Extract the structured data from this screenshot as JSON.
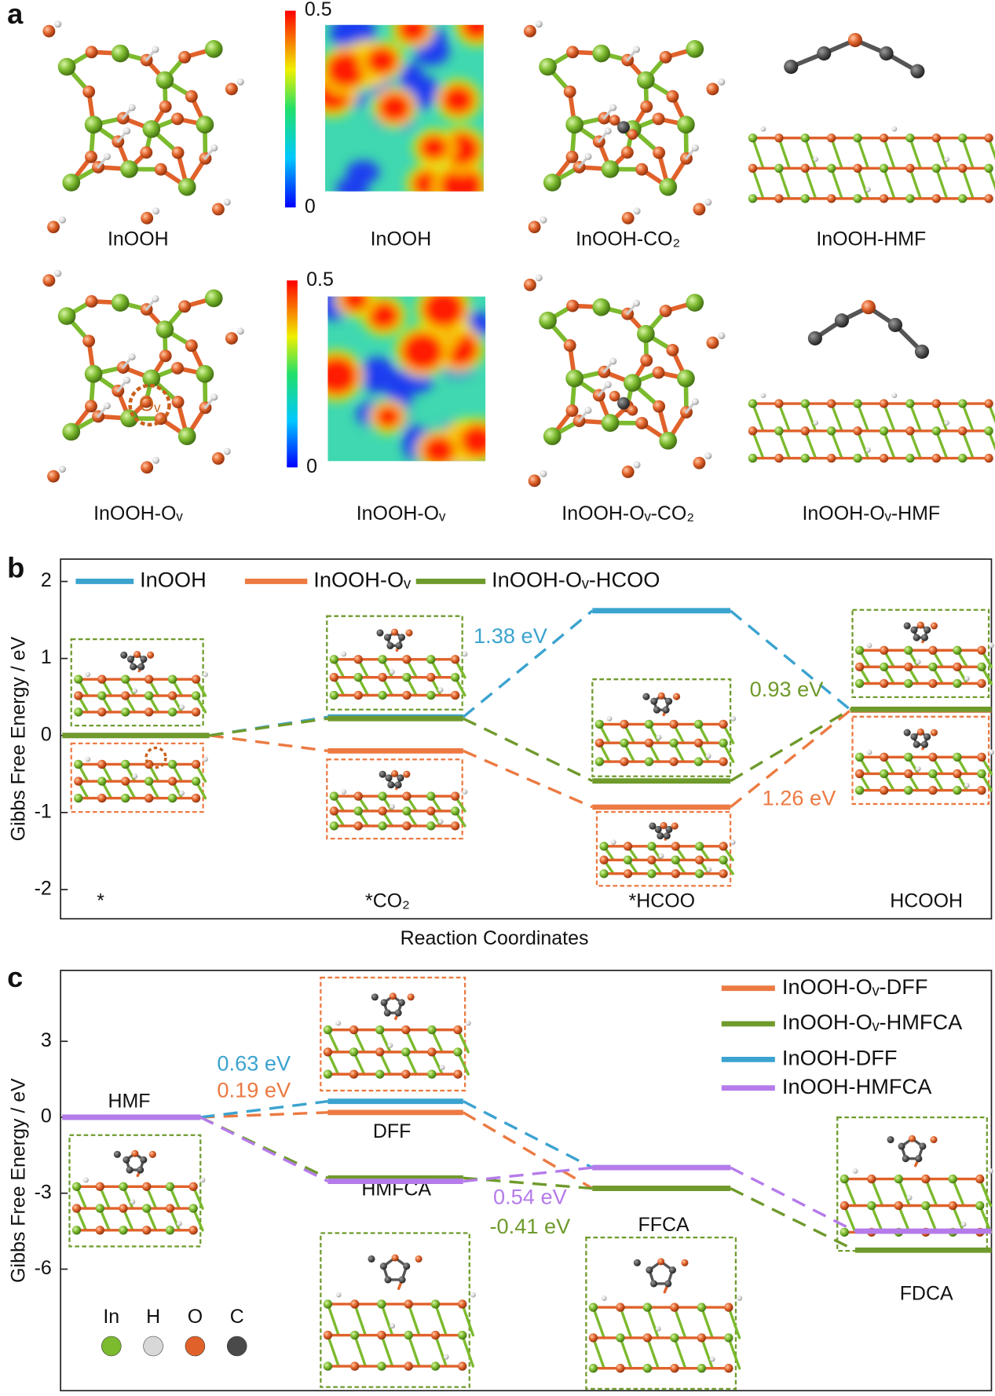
{
  "panel_a": {
    "label": "a",
    "captions": [
      "InOOH",
      "InOOH",
      "InOOH-CO₂",
      "InOOH-HMF",
      "InOOH-Oᵥ",
      "InOOH-Oᵥ",
      "InOOH-Oᵥ-CO₂",
      "InOOH-Oᵥ-HMF"
    ],
    "clim": [
      0,
      0.5
    ],
    "cticks": [
      0,
      0.5
    ],
    "vacancy_label": "Oᵥ"
  },
  "atom_legend": [
    {
      "name": "In",
      "color": "#7cba2e"
    },
    {
      "name": "H",
      "color": "#d8d8d8"
    },
    {
      "name": "O",
      "color": "#e0622a"
    },
    {
      "name": "C",
      "color": "#4a4a4a"
    }
  ],
  "chart_data": [
    {
      "panel": "b",
      "type": "level",
      "categories": [
        "*",
        "*CO₂",
        "*HCOO",
        "HCOOH"
      ],
      "series": [
        {
          "name": "InOOH",
          "color": "#3ba3cf",
          "values": [
            0,
            0.24,
            1.62,
            0.33
          ]
        },
        {
          "name": "InOOH-Oᵥ",
          "color": "#ec7a42",
          "values": [
            0,
            -0.2,
            -0.93,
            0.33
          ]
        },
        {
          "name": "InOOH-Oᵥ-HCOO",
          "color": "#6f9a2c",
          "values": [
            0,
            0.22,
            -0.59,
            0.34
          ]
        }
      ],
      "ylim": [
        -2.38,
        2.29
      ],
      "yticks": [
        -2,
        -1,
        0,
        1,
        2
      ],
      "xlabel": "Reaction Coordinates",
      "ylabel": "Gibbs Free Energy / eV",
      "legend": "top",
      "annotations": [
        {
          "text": "1.38 eV",
          "color": "#3ba3cf"
        },
        {
          "text": "0.93 eV",
          "color": "#6f9a2c"
        },
        {
          "text": "1.26 eV",
          "color": "#ec7a42"
        }
      ]
    },
    {
      "panel": "c",
      "type": "level",
      "categories": [
        "HMF",
        "DFF",
        "HMFCA",
        "FFCA",
        "FDCA"
      ],
      "series": [
        {
          "name": "InOOH-Oᵥ-DFF",
          "color": "#ec7a42",
          "values": [
            0,
            0.19,
            null,
            -2.81,
            null
          ]
        },
        {
          "name": "InOOH-Oᵥ-HMFCA",
          "color": "#6f9a2c",
          "values": [
            0,
            null,
            -2.4,
            -2.81,
            -5.25
          ]
        },
        {
          "name": "InOOH-DFF",
          "color": "#3ba3cf",
          "values": [
            0,
            0.63,
            null,
            -1.99,
            null
          ]
        },
        {
          "name": "InOOH-HMFCA",
          "color": "#b57bea",
          "values": [
            0,
            null,
            -2.53,
            -1.99,
            -4.5
          ]
        }
      ],
      "ylim": [
        -10.8,
        5.8
      ],
      "yticks": [
        -6,
        -3,
        0,
        3
      ],
      "xlabel": "Reaction Coordinates",
      "ylabel": "Gibbs Free Energy / eV",
      "legend": "upper right",
      "annotations": [
        {
          "text": "0.63 eV",
          "color": "#3ba3cf"
        },
        {
          "text": "0.19 eV",
          "color": "#ec7a42"
        },
        {
          "text": "0.54 eV",
          "color": "#b57bea"
        },
        {
          "text": "-0.41 eV",
          "color": "#6f9a2c"
        }
      ]
    }
  ]
}
